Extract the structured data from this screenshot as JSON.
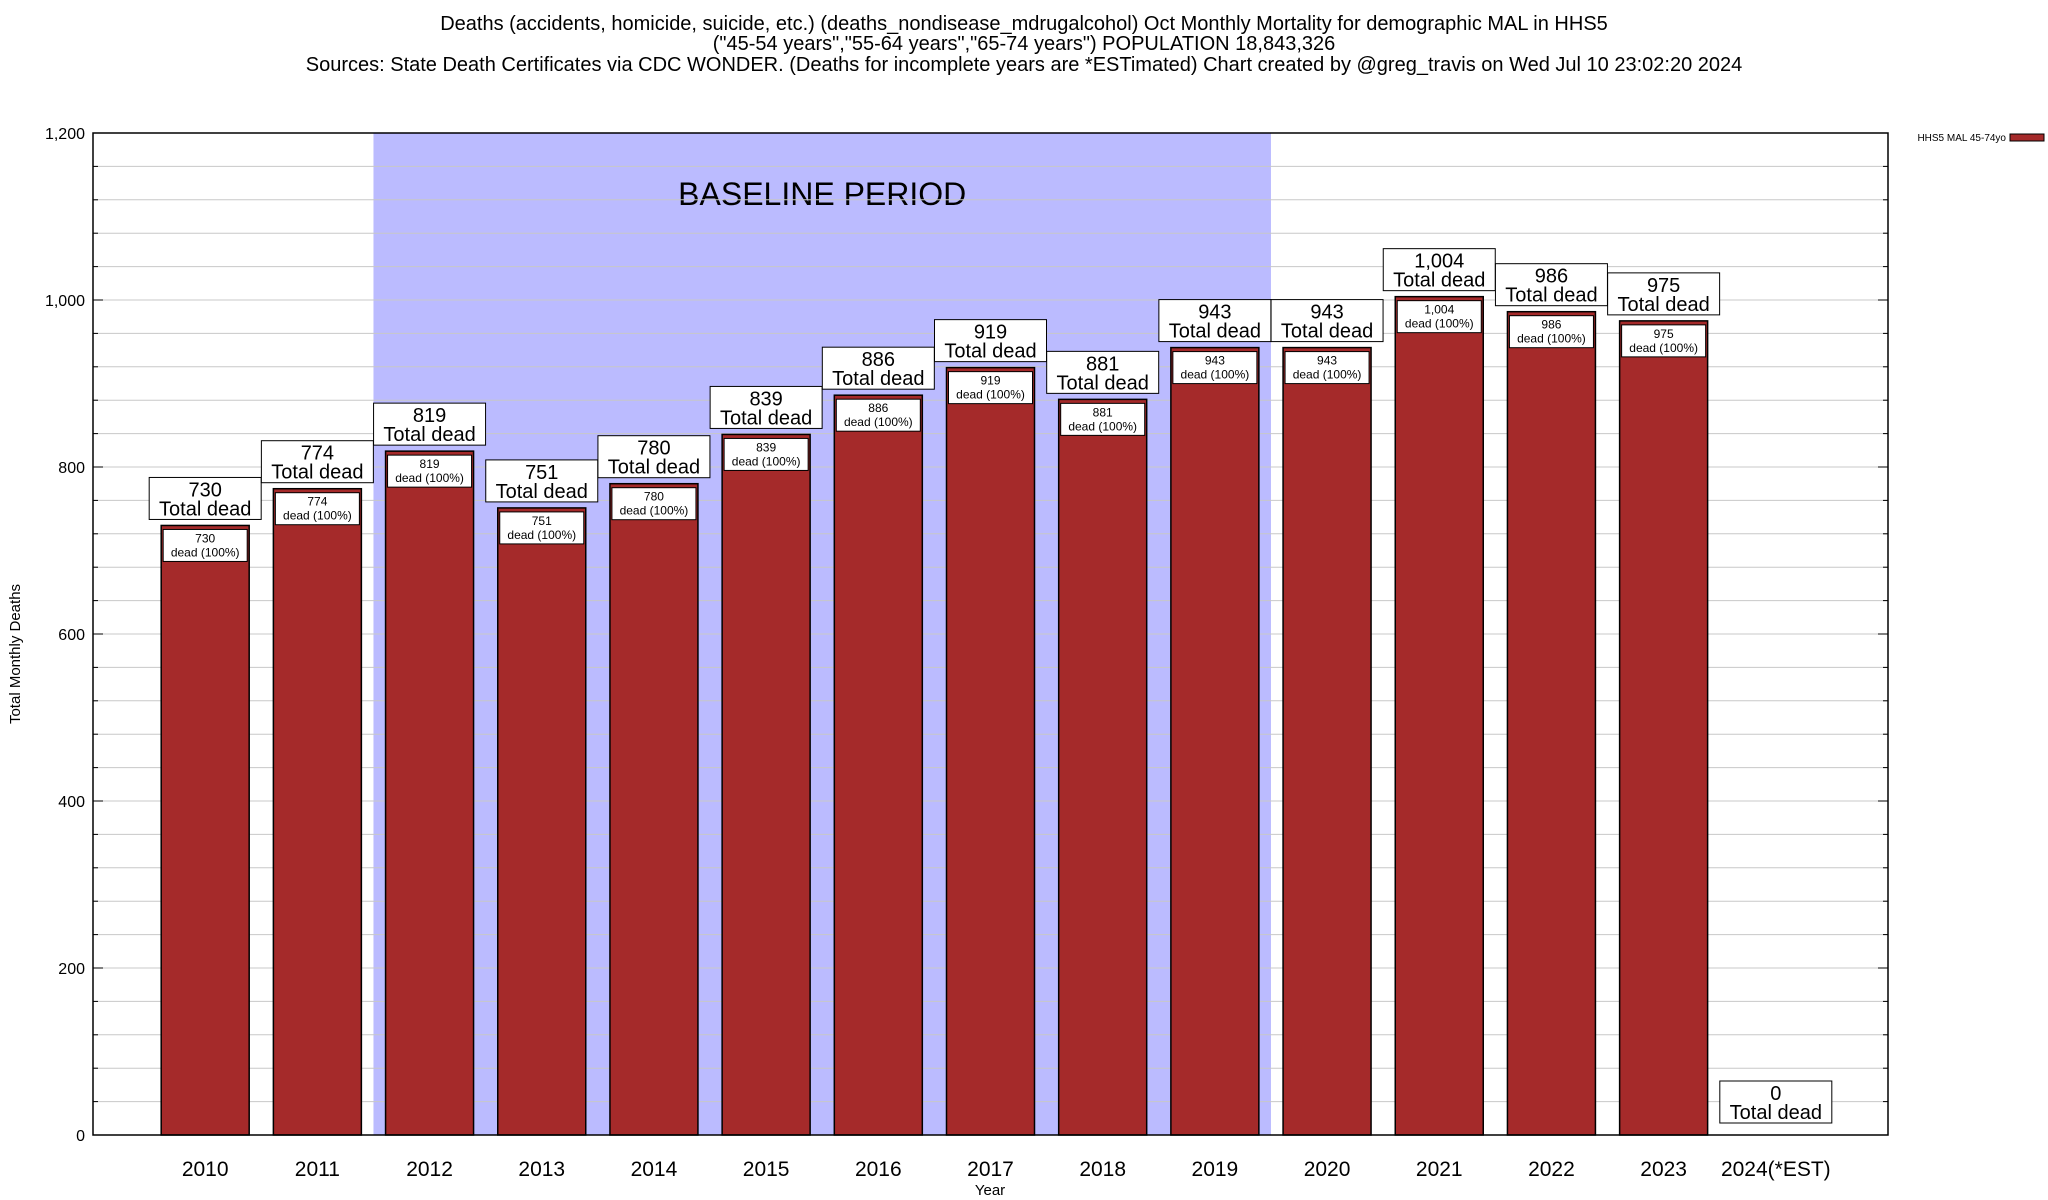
{
  "chart_data": {
    "type": "bar",
    "title_lines": [
      "Deaths (accidents, homicide, suicide, etc.) (deaths_nondisease_mdrugalcohol) Oct Monthly Mortality for demographic MAL in HHS5",
      "(\"45-54 years\",\"55-64 years\",\"65-74 years\") POPULATION 18,843,326",
      "Sources: State Death Certificates via CDC WONDER. (Deaths for incomplete years are *ESTimated)                Chart created by @greg_travis on Wed Jul 10 23:02:20 2024"
    ],
    "xlabel": "Year",
    "ylabel": "Total Monthly Deaths",
    "ylim": [
      0,
      1200
    ],
    "yticks": [
      0,
      200,
      400,
      600,
      800,
      1000,
      1200
    ],
    "ytick_labels": [
      "0",
      "200",
      "400",
      "600",
      "800",
      "1,000",
      "1,200"
    ],
    "categories": [
      "2010",
      "2011",
      "2012",
      "2013",
      "2014",
      "2015",
      "2016",
      "2017",
      "2018",
      "2019",
      "2020",
      "2021",
      "2022",
      "2023",
      "2024(*EST)"
    ],
    "series": [
      {
        "name": "HHS5 MAL 45-74yo",
        "color": "#a52a2a",
        "values": [
          730,
          774,
          819,
          751,
          780,
          839,
          886,
          919,
          881,
          943,
          943,
          1004,
          986,
          975,
          0
        ]
      }
    ],
    "value_labels": [
      "730",
      "774",
      "819",
      "751",
      "780",
      "839",
      "886",
      "919",
      "881",
      "943",
      "943",
      "1,004",
      "986",
      "975",
      "0"
    ],
    "total_label": "Total dead",
    "inner_label_suffix": "dead (100%)",
    "baseline": {
      "label": "BASELINE PERIOD",
      "start": "2012",
      "end": "2019",
      "color": "#bbbbff"
    },
    "legend_position": "top-right",
    "grid": true
  }
}
